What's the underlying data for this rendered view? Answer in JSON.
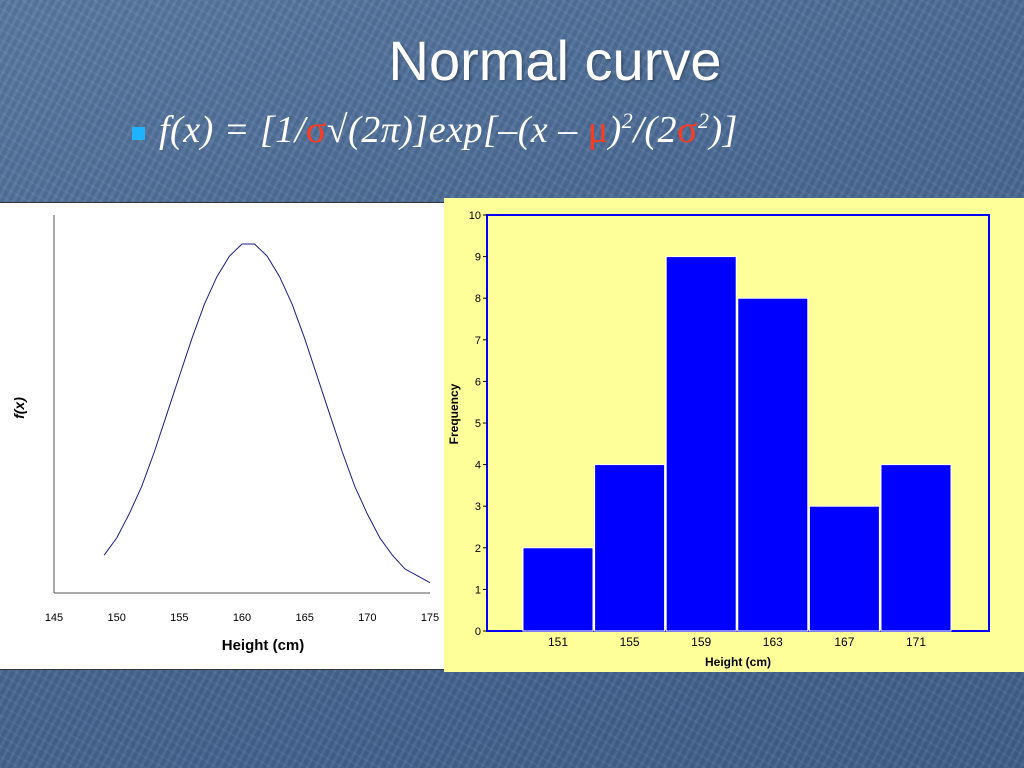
{
  "slide": {
    "title": "Normal curve",
    "formula": {
      "p1": "f(x) = [1/",
      "sigma": "σ",
      "p2": "√(2π)]exp[–(x – ",
      "mu": "μ",
      "p3": ")",
      "exp2a": "2",
      "p4": "/(2",
      "sigma2": "σ",
      "exp2b": "2",
      "p5": ")]"
    },
    "colors": {
      "title": "#ffffff",
      "highlight": "#ff3b1f",
      "bullet": "#1fb3ff"
    }
  },
  "chart_data": [
    {
      "type": "line",
      "xlabel": "Height (cm)",
      "ylabel": "f(x)",
      "xlim": [
        145,
        175
      ],
      "xticks": [
        145,
        150,
        155,
        160,
        165,
        170,
        175
      ],
      "y_ticks_shown": false,
      "grid": false,
      "color": "#1a1a8c",
      "series": [
        {
          "x": [
            149,
            150,
            151,
            152,
            153,
            154,
            155,
            156,
            157,
            158,
            159,
            160,
            161,
            162,
            163,
            164,
            165,
            166,
            167,
            168,
            169,
            170,
            171,
            172,
            173,
            174,
            175
          ],
          "y": [
            0.011,
            0.016,
            0.023,
            0.031,
            0.041,
            0.052,
            0.063,
            0.074,
            0.084,
            0.092,
            0.098,
            0.1015,
            0.1015,
            0.098,
            0.092,
            0.084,
            0.074,
            0.063,
            0.052,
            0.041,
            0.031,
            0.023,
            0.016,
            0.011,
            0.007,
            0.005,
            0.003
          ]
        }
      ]
    },
    {
      "type": "bar",
      "categories": [
        "151",
        "155",
        "159",
        "163",
        "167",
        "171"
      ],
      "values": [
        2,
        4,
        9,
        8,
        3,
        4
      ],
      "xlabel": "Height (cm)",
      "ylabel": "Frequency",
      "ylim": [
        0,
        10
      ],
      "yticks": [
        0,
        1,
        2,
        3,
        4,
        5,
        6,
        7,
        8,
        9,
        10
      ],
      "grid": false,
      "bar_color": "#0000ff",
      "plot_background": "#ffff99"
    }
  ]
}
